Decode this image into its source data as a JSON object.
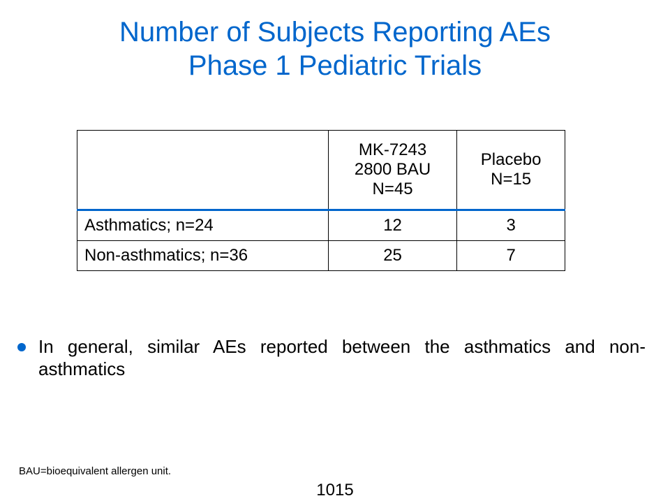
{
  "title": {
    "line1": "Number of Subjects Reporting AEs",
    "line2": "Phase 1 Pediatric Trials"
  },
  "table": {
    "headers": {
      "col1": "",
      "col2": [
        "MK-7243",
        "2800 BAU",
        "N=45"
      ],
      "col3": [
        "Placebo",
        "N=15"
      ]
    },
    "rows": [
      {
        "label": "Asthmatics; n=24",
        "mk": "12",
        "placebo": "3"
      },
      {
        "label": "Non-asthmatics; n=36",
        "mk": "25",
        "placebo": "7"
      }
    ]
  },
  "bullet": {
    "text": "In general, similar AEs reported between the asthmatics and non-asthmatics"
  },
  "footnote": "BAU=bioequivalent allergen unit.",
  "page_number": "1015",
  "colors": {
    "accent": "#0066cc",
    "text": "#000000",
    "background": "#ffffff"
  }
}
